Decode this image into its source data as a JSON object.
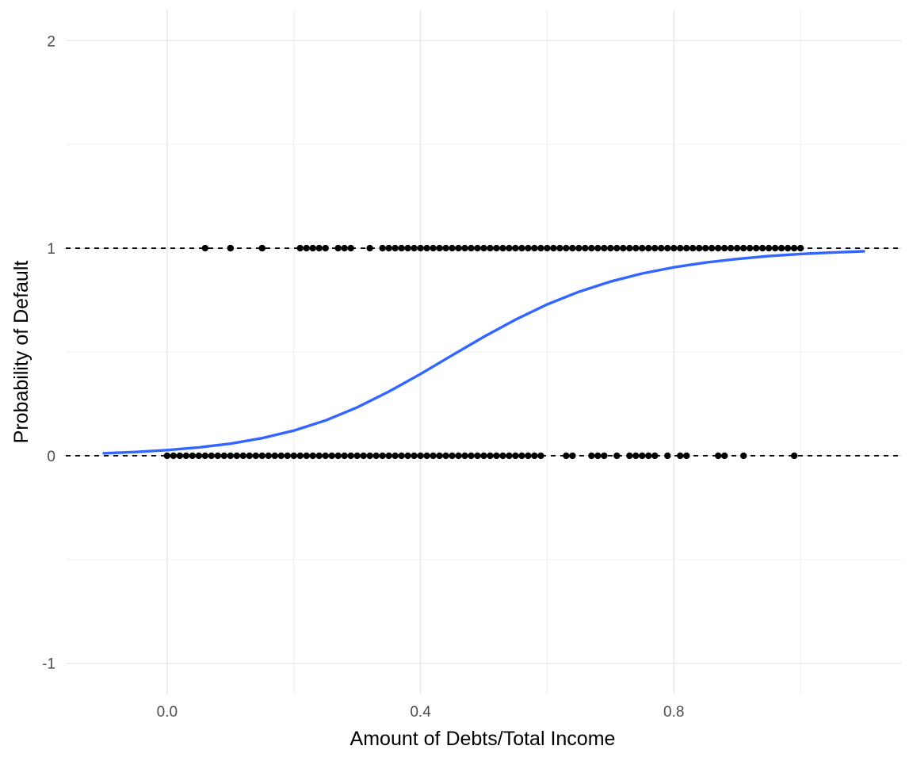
{
  "chart_data": {
    "type": "scatter",
    "title": "",
    "xlabel": "Amount of Debts/Total Income",
    "ylabel": "Probability of Default",
    "xlim": [
      -0.16,
      1.16
    ],
    "ylim": [
      -1.15,
      2.15
    ],
    "x_ticks": [
      0.0,
      0.4,
      0.8
    ],
    "x_tick_labels": [
      "0.0",
      "0.4",
      "0.8"
    ],
    "x_minor_ticks": [
      0.2,
      0.6,
      1.0
    ],
    "y_ticks": [
      -1,
      0,
      1,
      2
    ],
    "y_tick_labels": [
      "-1",
      "0",
      "1",
      "2"
    ],
    "y_minor_ticks": [
      -0.5,
      0.5,
      1.5
    ],
    "grid": true,
    "legend": "none",
    "reference_lines": [
      0,
      1
    ],
    "series": [
      {
        "kind": "points",
        "color": "#000000",
        "x": [
          0.06,
          0.1,
          0.1,
          0.15,
          0.15,
          0.21,
          0.22,
          0.23,
          0.24,
          0.25,
          0.27,
          0.28,
          0.29,
          0.32,
          0.34,
          0.35,
          0.36,
          0.37,
          0.38,
          0.39,
          0.4,
          0.41,
          0.42,
          0.43,
          0.44,
          0.45,
          0.46,
          0.47,
          0.48,
          0.49,
          0.5,
          0.51,
          0.52,
          0.53,
          0.54,
          0.55,
          0.56,
          0.57,
          0.58,
          0.59,
          0.6,
          0.61,
          0.62,
          0.63,
          0.64,
          0.65,
          0.66,
          0.67,
          0.68,
          0.69,
          0.7,
          0.71,
          0.72,
          0.73,
          0.74,
          0.75,
          0.76,
          0.77,
          0.78,
          0.79,
          0.8,
          0.81,
          0.82,
          0.83,
          0.84,
          0.85,
          0.86,
          0.87,
          0.88,
          0.89,
          0.9,
          0.91,
          0.92,
          0.93,
          0.94,
          0.95,
          0.96,
          0.97,
          0.98,
          0.99,
          1.0
        ],
        "y": [
          1,
          1,
          1,
          1,
          1,
          1,
          1,
          1,
          1,
          1,
          1,
          1,
          1,
          1,
          1,
          1,
          1,
          1,
          1,
          1,
          1,
          1,
          1,
          1,
          1,
          1,
          1,
          1,
          1,
          1,
          1,
          1,
          1,
          1,
          1,
          1,
          1,
          1,
          1,
          1,
          1,
          1,
          1,
          1,
          1,
          1,
          1,
          1,
          1,
          1,
          1,
          1,
          1,
          1,
          1,
          1,
          1,
          1,
          1,
          1,
          1,
          1,
          1,
          1,
          1,
          1,
          1,
          1,
          1,
          1,
          1,
          1,
          1,
          1,
          1,
          1,
          1,
          1,
          1,
          1,
          1
        ]
      },
      {
        "kind": "points",
        "color": "#000000",
        "x": [
          0.0,
          0.01,
          0.02,
          0.03,
          0.04,
          0.05,
          0.06,
          0.07,
          0.08,
          0.09,
          0.1,
          0.11,
          0.12,
          0.13,
          0.14,
          0.15,
          0.16,
          0.17,
          0.18,
          0.19,
          0.2,
          0.21,
          0.22,
          0.23,
          0.24,
          0.25,
          0.26,
          0.27,
          0.28,
          0.29,
          0.3,
          0.31,
          0.32,
          0.33,
          0.34,
          0.35,
          0.36,
          0.37,
          0.38,
          0.39,
          0.4,
          0.41,
          0.42,
          0.43,
          0.44,
          0.45,
          0.46,
          0.47,
          0.48,
          0.49,
          0.5,
          0.51,
          0.52,
          0.53,
          0.54,
          0.55,
          0.56,
          0.57,
          0.58,
          0.59,
          0.63,
          0.64,
          0.67,
          0.68,
          0.69,
          0.71,
          0.73,
          0.74,
          0.75,
          0.76,
          0.77,
          0.79,
          0.81,
          0.82,
          0.87,
          0.88,
          0.91,
          0.99
        ],
        "y": [
          0,
          0,
          0,
          0,
          0,
          0,
          0,
          0,
          0,
          0,
          0,
          0,
          0,
          0,
          0,
          0,
          0,
          0,
          0,
          0,
          0,
          0,
          0,
          0,
          0,
          0,
          0,
          0,
          0,
          0,
          0,
          0,
          0,
          0,
          0,
          0,
          0,
          0,
          0,
          0,
          0,
          0,
          0,
          0,
          0,
          0,
          0,
          0,
          0,
          0,
          0,
          0,
          0,
          0,
          0,
          0,
          0,
          0,
          0,
          0,
          0,
          0,
          0,
          0,
          0,
          0,
          0,
          0,
          0,
          0,
          0,
          0,
          0,
          0,
          0,
          0,
          0,
          0
        ]
      },
      {
        "kind": "curve",
        "color": "#3366ff",
        "x": [
          -0.1,
          -0.05,
          0.0,
          0.05,
          0.1,
          0.15,
          0.2,
          0.25,
          0.3,
          0.35,
          0.4,
          0.45,
          0.5,
          0.55,
          0.6,
          0.65,
          0.7,
          0.75,
          0.8,
          0.85,
          0.9,
          0.95,
          1.0,
          1.05,
          1.1
        ],
        "y": [
          0.012,
          0.018,
          0.027,
          0.04,
          0.058,
          0.085,
          0.121,
          0.17,
          0.233,
          0.309,
          0.394,
          0.484,
          0.573,
          0.656,
          0.729,
          0.79,
          0.839,
          0.878,
          0.908,
          0.931,
          0.948,
          0.962,
          0.972,
          0.979,
          0.985
        ]
      }
    ]
  }
}
